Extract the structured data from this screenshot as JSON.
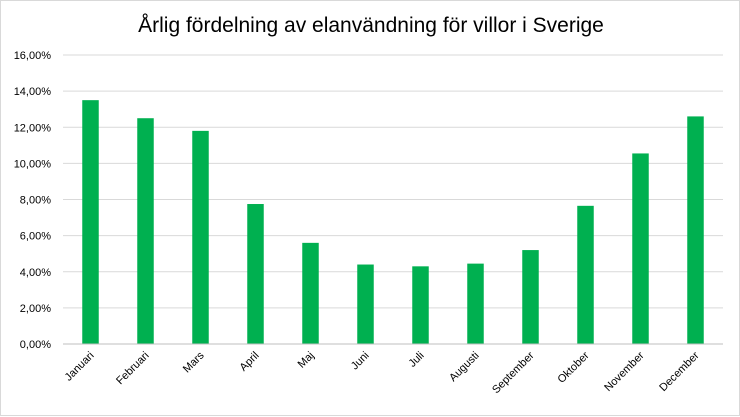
{
  "chart_data": {
    "type": "bar",
    "title": "Årlig fördelning av elanvändning för villor i Sverige",
    "xlabel": "",
    "ylabel": "",
    "categories": [
      "Januari",
      "Februari",
      "Mars",
      "April",
      "Maj",
      "Juni",
      "Juli",
      "Augusti",
      "September",
      "Oktober",
      "November",
      "December"
    ],
    "values": [
      13.5,
      12.5,
      11.8,
      7.75,
      5.6,
      4.4,
      4.3,
      4.45,
      5.2,
      7.65,
      10.55,
      12.6
    ],
    "ylim": [
      0,
      16
    ],
    "yticks": [
      0,
      2,
      4,
      6,
      8,
      10,
      12,
      14,
      16
    ],
    "ytick_labels": [
      "0,00%",
      "2,00%",
      "4,00%",
      "6,00%",
      "8,00%",
      "10,00%",
      "12,00%",
      "14,00%",
      "16,00%"
    ],
    "grid": true,
    "legend": "none",
    "bar_color": "#00b050"
  }
}
